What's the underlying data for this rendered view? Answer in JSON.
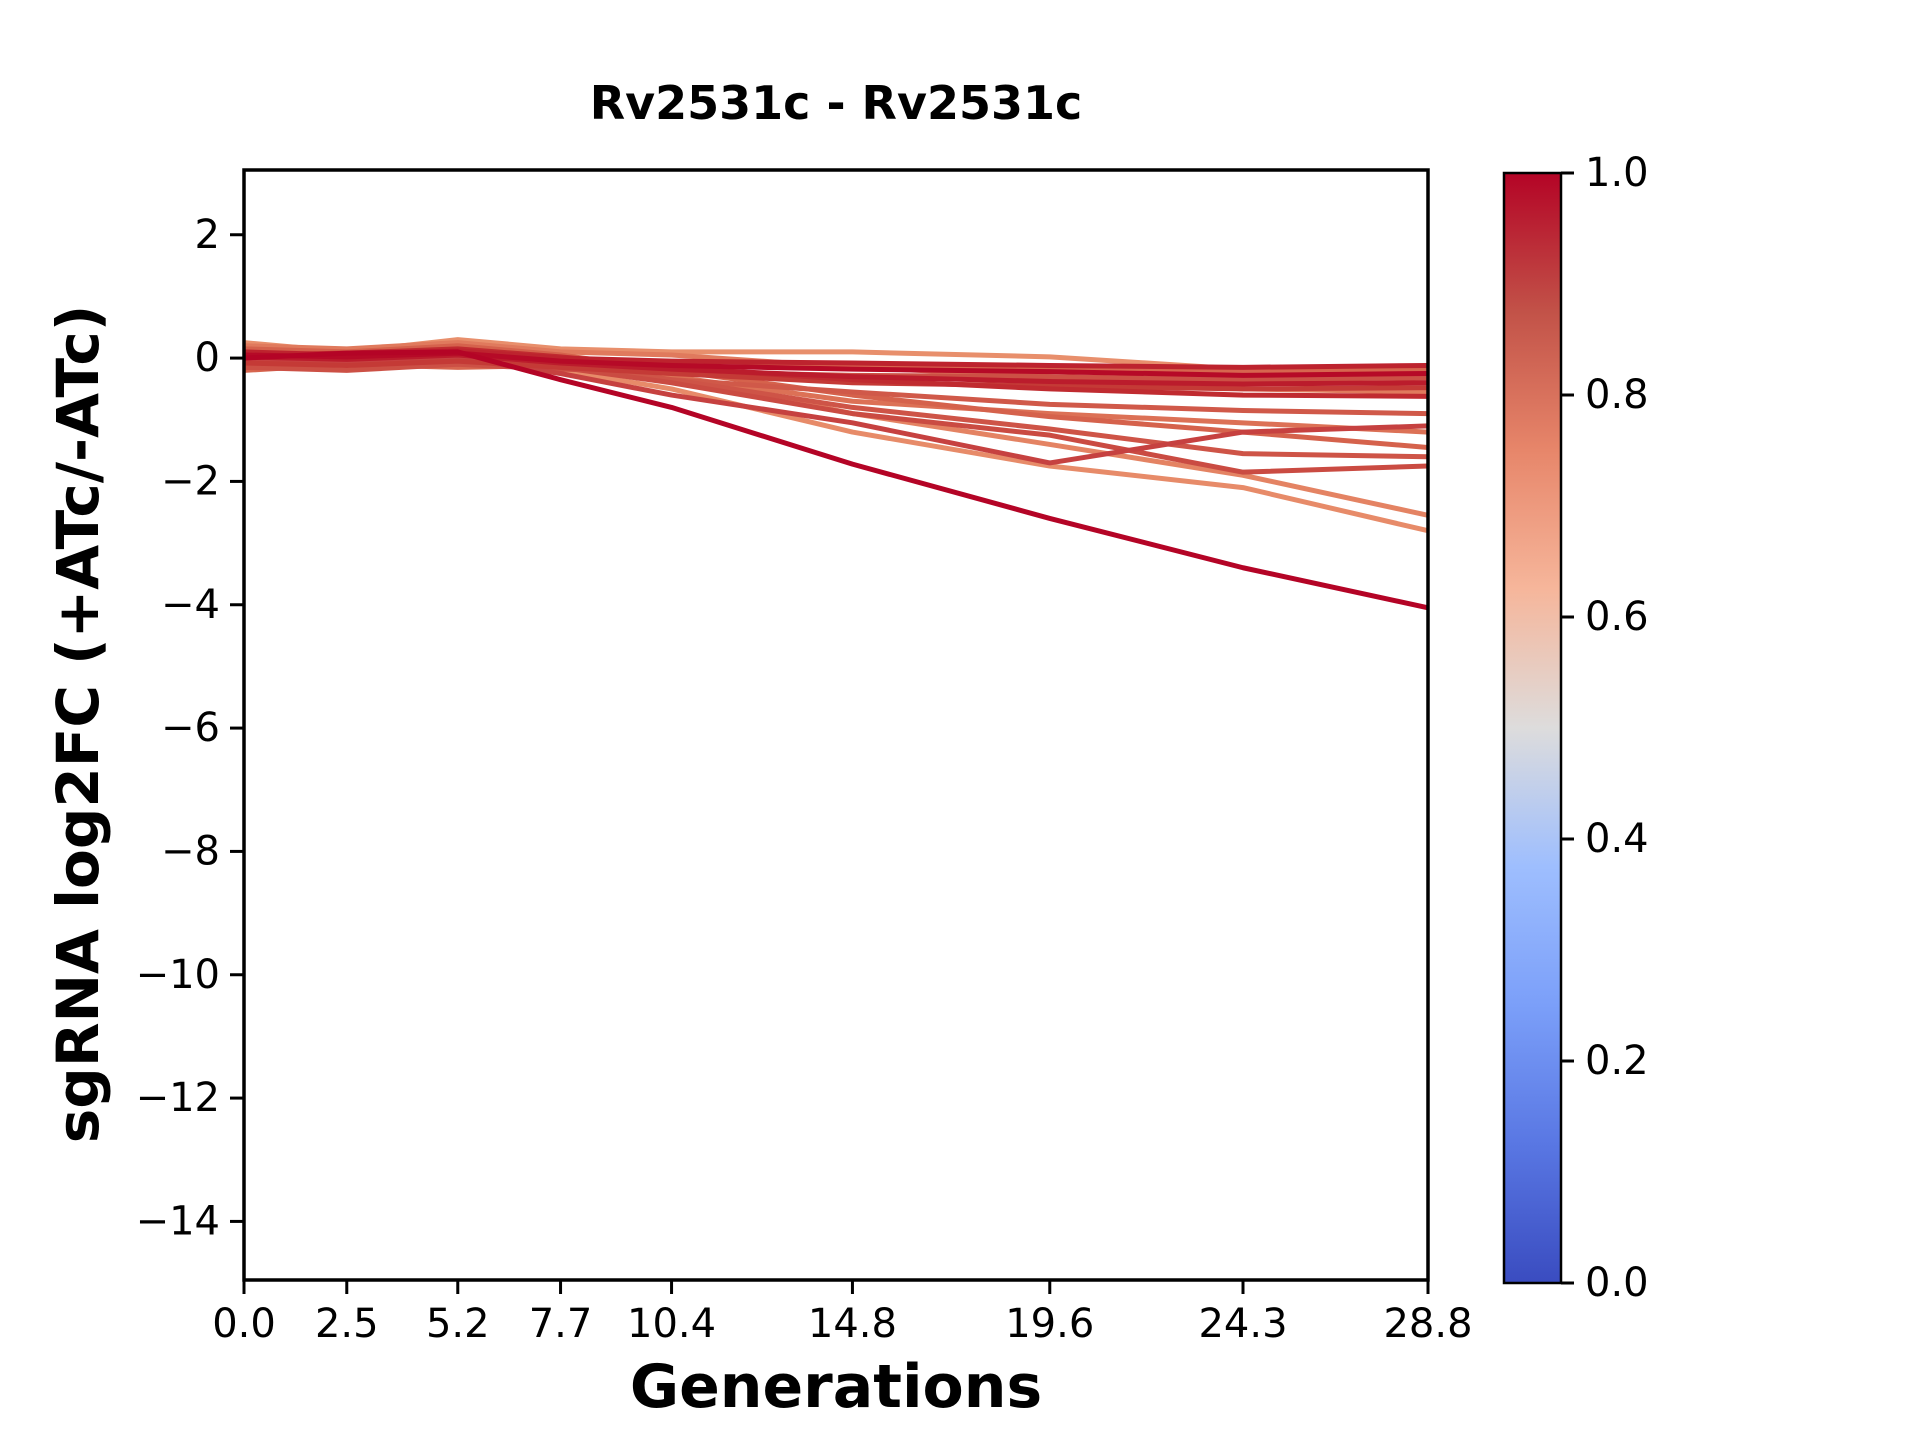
{
  "chart_data": {
    "type": "line",
    "title": "Rv2531c - Rv2531c",
    "xlabel": "Generations",
    "ylabel": "sgRNA log2FC (+ATc/-ATc)",
    "grid": false,
    "legend": "none",
    "xlim": [
      0,
      28.8
    ],
    "ylim": [
      -14.95,
      3.05
    ],
    "x_ticks": [
      0.0,
      2.5,
      5.2,
      7.7,
      10.4,
      14.8,
      19.6,
      24.3,
      28.8
    ],
    "x_tick_labels": [
      "0.0",
      "2.5",
      "5.2",
      "7.7",
      "10.4",
      "14.8",
      "19.6",
      "24.3",
      "28.8"
    ],
    "y_ticks": [
      2,
      0,
      -2,
      -4,
      -6,
      -8,
      -10,
      -12,
      -14
    ],
    "axis_color": "#000000",
    "line_width": 5,
    "x": [
      0.0,
      2.5,
      5.2,
      7.7,
      10.4,
      14.8,
      19.6,
      24.3,
      28.8
    ],
    "series": [
      {
        "colorbar_value": 0.75,
        "color": "#e88f6c",
        "values": [
          0.25,
          0.1,
          0.3,
          0.15,
          0.1,
          0.1,
          0.02,
          -0.18,
          -0.3
        ]
      },
      {
        "colorbar_value": 0.76,
        "color": "#e78b69",
        "values": [
          -0.1,
          -0.15,
          0.0,
          -0.2,
          -0.5,
          -1.2,
          -1.75,
          -2.1,
          -2.8
        ]
      },
      {
        "colorbar_value": 0.78,
        "color": "#e48363",
        "values": [
          0.1,
          0.05,
          0.15,
          0.0,
          -0.3,
          -0.9,
          -1.4,
          -1.9,
          -2.55
        ]
      },
      {
        "colorbar_value": 0.8,
        "color": "#e07a5d",
        "values": [
          0.2,
          0.15,
          0.25,
          0.1,
          0.05,
          -0.15,
          -0.3,
          -0.5,
          -0.55
        ]
      },
      {
        "colorbar_value": 0.82,
        "color": "#dc7156",
        "values": [
          0.08,
          0.0,
          0.1,
          -0.05,
          -0.3,
          -0.7,
          -0.9,
          -1.05,
          -1.2
        ]
      },
      {
        "colorbar_value": 0.84,
        "color": "#d7664f",
        "values": [
          -0.2,
          -0.1,
          -0.15,
          -0.12,
          -0.15,
          -0.12,
          -0.18,
          -0.22,
          -0.18
        ]
      },
      {
        "colorbar_value": 0.85,
        "color": "#d5624c",
        "values": [
          0.15,
          0.1,
          0.2,
          0.05,
          -0.2,
          -0.6,
          -0.95,
          -1.2,
          -1.45
        ]
      },
      {
        "colorbar_value": 0.87,
        "color": "#d05949",
        "values": [
          -0.12,
          -0.08,
          0.02,
          -0.12,
          -0.35,
          -0.55,
          -0.75,
          -0.85,
          -0.9
        ]
      },
      {
        "colorbar_value": 0.88,
        "color": "#ce5447",
        "values": [
          -0.05,
          0.0,
          0.1,
          -0.1,
          -0.35,
          -0.8,
          -1.15,
          -1.55,
          -1.6
        ]
      },
      {
        "colorbar_value": 0.89,
        "color": "#cc5045",
        "values": [
          -0.15,
          -0.2,
          -0.1,
          -0.18,
          -0.22,
          -0.28,
          -0.3,
          -0.35,
          -0.32
        ]
      },
      {
        "colorbar_value": 0.9,
        "color": "#ca4b42",
        "values": [
          0.05,
          -0.05,
          0.05,
          -0.15,
          -0.4,
          -0.9,
          -1.25,
          -1.85,
          -1.75
        ]
      },
      {
        "colorbar_value": 0.92,
        "color": "#c64140",
        "values": [
          0.0,
          -0.1,
          0.0,
          -0.25,
          -0.6,
          -1.05,
          -1.7,
          -1.2,
          -1.1
        ]
      },
      {
        "colorbar_value": 0.93,
        "color": "#c43a36",
        "values": [
          -0.08,
          -0.12,
          -0.05,
          -0.15,
          -0.25,
          -0.4,
          -0.45,
          -0.5,
          -0.48
        ]
      },
      {
        "colorbar_value": 0.95,
        "color": "#c02b30",
        "values": [
          0.05,
          0.08,
          0.15,
          0.02,
          -0.15,
          -0.35,
          -0.5,
          -0.6,
          -0.62
        ]
      },
      {
        "colorbar_value": 0.96,
        "color": "#bd232e",
        "values": [
          0.1,
          0.05,
          0.12,
          0.0,
          -0.05,
          -0.08,
          -0.12,
          -0.15,
          -0.12
        ]
      },
      {
        "colorbar_value": 0.97,
        "color": "#bb1c2c",
        "values": [
          0.02,
          -0.02,
          0.05,
          -0.08,
          -0.18,
          -0.3,
          -0.38,
          -0.42,
          -0.4
        ]
      },
      {
        "colorbar_value": 0.99,
        "color": "#b60a27",
        "values": [
          0.05,
          0.02,
          0.08,
          -0.05,
          -0.12,
          -0.18,
          -0.22,
          -0.28,
          -0.25
        ]
      },
      {
        "colorbar_value": 1.0,
        "color": "#b40426",
        "values": [
          0.0,
          0.08,
          0.1,
          -0.35,
          -0.8,
          -1.72,
          -2.6,
          -3.4,
          -4.05
        ]
      }
    ],
    "colorbar": {
      "vmin": 0.0,
      "vmax": 1.0,
      "cmap": "coolwarm",
      "ticks": [
        {
          "value": 1.0,
          "label": "1.0"
        },
        {
          "value": 0.8,
          "label": "0.8"
        },
        {
          "value": 0.6,
          "label": "0.6"
        },
        {
          "value": 0.4,
          "label": "0.4"
        },
        {
          "value": 0.2,
          "label": "0.2"
        },
        {
          "value": 0.0,
          "label": "0.0"
        }
      ],
      "gradient_stops": [
        {
          "pos": 0.0,
          "color": "#3a4cc0"
        },
        {
          "pos": 0.125,
          "color": "#5977e3"
        },
        {
          "pos": 0.25,
          "color": "#7b9ff9"
        },
        {
          "pos": 0.375,
          "color": "#9ebefe"
        },
        {
          "pos": 0.5,
          "color": "#dddcdc"
        },
        {
          "pos": 0.625,
          "color": "#f6b69b"
        },
        {
          "pos": 0.75,
          "color": "#e7866a"
        },
        {
          "pos": 0.875,
          "color": "#c25248"
        },
        {
          "pos": 1.0,
          "color": "#b40426"
        }
      ]
    }
  }
}
